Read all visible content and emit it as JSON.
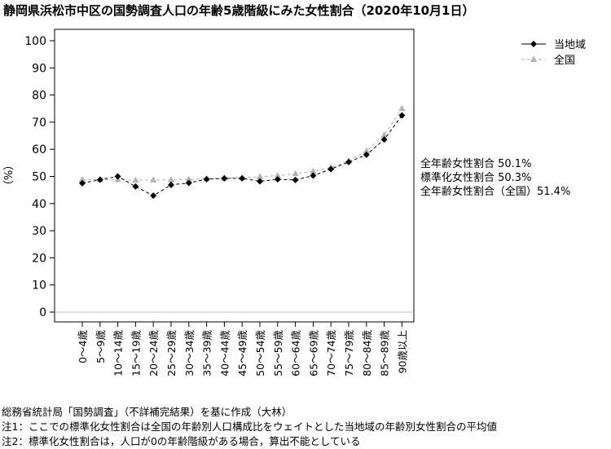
{
  "chart_data": {
    "type": "line",
    "title": "静岡県浜松市中区の国勢調査人口の年齢5歳階級にみた女性割合（2020年10月1日）",
    "ylabel": "（%）",
    "xlabel": "",
    "ylim": [
      0,
      100
    ],
    "yticks": [
      0,
      10,
      20,
      30,
      40,
      50,
      60,
      70,
      80,
      90,
      100
    ],
    "grid": false,
    "legend_position": "top-right",
    "categories": [
      "0～4歳",
      "5～9歳",
      "10～14歳",
      "15～19歳",
      "20～24歳",
      "25～29歳",
      "30～34歳",
      "35～39歳",
      "40～44歳",
      "45～49歳",
      "50～54歳",
      "55～59歳",
      "60～64歳",
      "65～69歳",
      "70～74歳",
      "75～79歳",
      "80～84歳",
      "85～89歳",
      "90歳以上"
    ],
    "series": [
      {
        "name": "当地域",
        "color": "#000000",
        "marker": "diamond",
        "values": [
          47.5,
          48.8,
          50.0,
          46.3,
          42.9,
          46.9,
          47.6,
          49.0,
          49.3,
          49.3,
          48.2,
          48.9,
          48.7,
          50.3,
          52.7,
          55.3,
          58.0,
          63.6,
          72.5
        ]
      },
      {
        "name": "全国",
        "color": "#b4b4b4",
        "marker": "triangle",
        "values": [
          48.8,
          48.8,
          48.8,
          48.6,
          48.7,
          48.7,
          48.9,
          49.1,
          49.4,
          49.5,
          49.9,
          50.3,
          51.0,
          51.9,
          53.3,
          55.7,
          59.4,
          65.2,
          75.0
        ]
      }
    ],
    "annotations": [
      "全年齢女性割合 50.1%",
      "標準化女性割合 50.3%",
      "全年齢女性割合（全国）51.4%"
    ],
    "footnotes": [
      "総務省統計局「国勢調査」（不詳補完結果）を基に作成（大林）",
      "注1：ここでの標準化女性割合は全国の年齢別人口構成比をウェイトとした当地域の年齢別女性割合の平均値",
      "注2：標準化女性割合は，人口が0の年齢階級がある場合，算出不能としている"
    ]
  }
}
